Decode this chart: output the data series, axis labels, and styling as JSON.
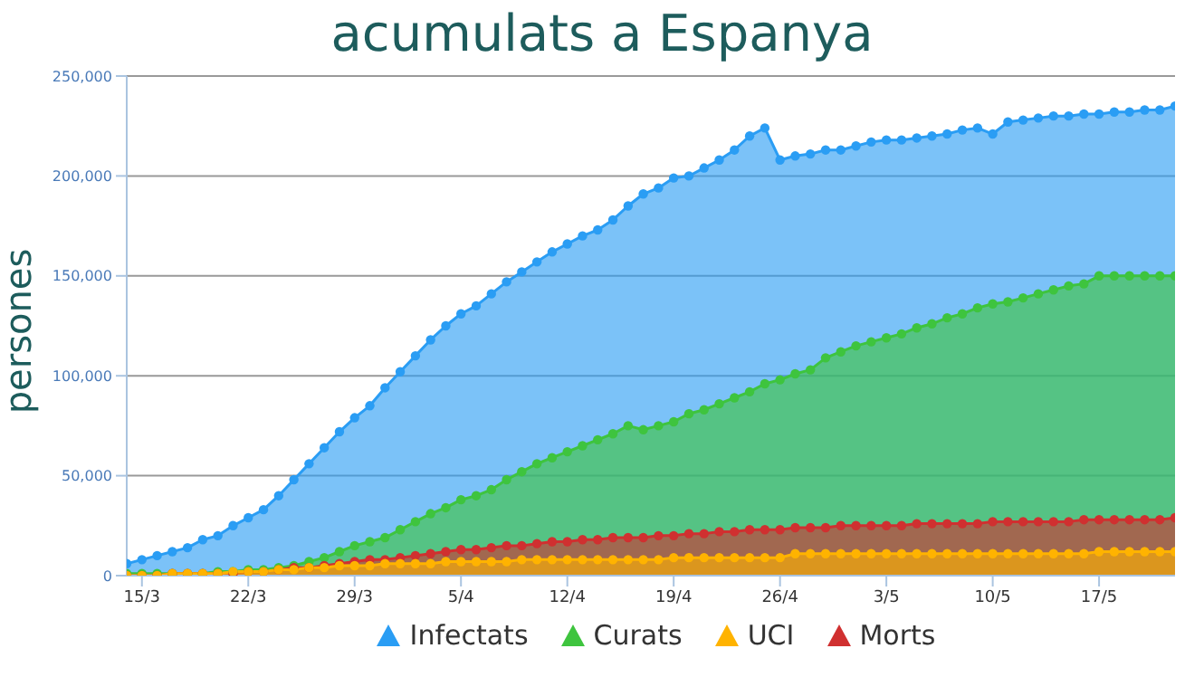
{
  "chart_data": {
    "type": "area",
    "title": "acumulats a Espanya",
    "ylabel": "persones",
    "x": [
      "--03-14",
      "--03-15",
      "--03-16",
      "--03-17",
      "--03-18",
      "--03-19",
      "--03-20",
      "--03-21",
      "--03-22",
      "--03-23",
      "--03-24",
      "--03-25",
      "--03-26",
      "--03-27",
      "--03-28",
      "--03-29",
      "--03-30",
      "--03-31",
      "--04-01",
      "--04-02",
      "--04-03",
      "--04-04",
      "--04-05",
      "--04-06",
      "--04-07",
      "--04-08",
      "--04-09",
      "--04-10",
      "--04-11",
      "--04-12",
      "--04-13",
      "--04-14",
      "--04-15",
      "--04-16",
      "--04-17",
      "--04-18",
      "--04-19",
      "--04-20",
      "--04-21",
      "--04-22",
      "--04-23",
      "--04-24",
      "--04-25",
      "--04-26",
      "--04-27",
      "--04-28",
      "--04-29",
      "--04-30",
      "--05-01",
      "--05-02",
      "--05-03",
      "--05-04",
      "--05-05",
      "--05-06",
      "--05-07",
      "--05-08",
      "--05-09",
      "--05-10",
      "--05-11",
      "--05-12",
      "--05-13",
      "--05-14",
      "--05-15",
      "--05-16",
      "--05-17",
      "--05-18",
      "--05-19",
      "--05-20",
      "--05-21",
      "--05-22"
    ],
    "series": [
      {
        "name": "Infectats",
        "color": "#2a9df4",
        "values": [
          6000,
          8000,
          10000,
          12000,
          14000,
          18000,
          20000,
          25000,
          29000,
          33000,
          40000,
          48000,
          56000,
          64000,
          72000,
          79000,
          85000,
          94000,
          102000,
          110000,
          118000,
          125000,
          131000,
          135000,
          141000,
          147000,
          152000,
          157000,
          162000,
          166000,
          170000,
          173000,
          178000,
          185000,
          191000,
          194000,
          199000,
          200000,
          204000,
          208000,
          213000,
          220000,
          224000,
          208000,
          210000,
          211000,
          213000,
          213000,
          215000,
          217000,
          218000,
          218000,
          219000,
          220000,
          221000,
          223000,
          224000,
          221000,
          227000,
          228000,
          229000,
          230000,
          230000,
          231000,
          231000,
          232000,
          232000,
          233000,
          233000,
          235000
        ]
      },
      {
        "name": "Curats",
        "color": "#3ec43e",
        "values": [
          1000,
          1000,
          1000,
          1000,
          1000,
          1000,
          2000,
          2000,
          3000,
          3000,
          4000,
          5000,
          7000,
          9000,
          12000,
          15000,
          17000,
          19000,
          23000,
          27000,
          31000,
          34000,
          38000,
          40000,
          43000,
          48000,
          52000,
          56000,
          59000,
          62000,
          65000,
          68000,
          71000,
          75000,
          73000,
          75000,
          77000,
          81000,
          83000,
          86000,
          89000,
          92000,
          96000,
          98000,
          101000,
          103000,
          109000,
          112000,
          115000,
          117000,
          119000,
          121000,
          124000,
          126000,
          129000,
          131000,
          134000,
          136000,
          137000,
          139000,
          141000,
          143000,
          145000,
          146000,
          150000,
          150000,
          150000,
          150000,
          150000,
          150000
        ]
      },
      {
        "name": "UCI",
        "color": "#ffb300",
        "values": [
          0,
          0,
          0,
          1000,
          1000,
          1000,
          1000,
          2000,
          2000,
          2000,
          3000,
          3000,
          4000,
          4000,
          5000,
          5000,
          5000,
          6000,
          6000,
          6000,
          6000,
          7000,
          7000,
          7000,
          7000,
          7000,
          8000,
          8000,
          8000,
          8000,
          8000,
          8000,
          8000,
          8000,
          8000,
          8000,
          9000,
          9000,
          9000,
          9000,
          9000,
          9000,
          9000,
          9000,
          11000,
          11000,
          11000,
          11000,
          11000,
          11000,
          11000,
          11000,
          11000,
          11000,
          11000,
          11000,
          11000,
          11000,
          11000,
          11000,
          11000,
          11000,
          11000,
          11000,
          12000,
          12000,
          12000,
          12000,
          12000,
          12000
        ]
      },
      {
        "name": "Morts",
        "color": "#d03030",
        "values": [
          0,
          0,
          0,
          1000,
          1000,
          1000,
          1000,
          1000,
          2000,
          2000,
          3000,
          4000,
          4000,
          5000,
          6000,
          7000,
          8000,
          8000,
          9000,
          10000,
          11000,
          12000,
          13000,
          13000,
          14000,
          15000,
          15000,
          16000,
          17000,
          17000,
          18000,
          18000,
          19000,
          19000,
          19000,
          20000,
          20000,
          21000,
          21000,
          22000,
          22000,
          23000,
          23000,
          23000,
          24000,
          24000,
          24000,
          25000,
          25000,
          25000,
          25000,
          25000,
          26000,
          26000,
          26000,
          26000,
          26000,
          27000,
          27000,
          27000,
          27000,
          27000,
          27000,
          28000,
          28000,
          28000,
          28000,
          28000,
          28000,
          29000
        ]
      }
    ],
    "xlim": [
      "--03-14",
      "--05-22"
    ],
    "xticks": [
      {
        "value": "--03-15",
        "label": "15/3"
      },
      {
        "value": "--03-22",
        "label": "22/3"
      },
      {
        "value": "--03-29",
        "label": "29/3"
      },
      {
        "value": "--04-05",
        "label": "5/4"
      },
      {
        "value": "--04-12",
        "label": "12/4"
      },
      {
        "value": "--04-19",
        "label": "19/4"
      },
      {
        "value": "--04-26",
        "label": "26/4"
      },
      {
        "value": "--05-03",
        "label": "3/5"
      },
      {
        "value": "--05-10",
        "label": "10/5"
      },
      {
        "value": "--05-17",
        "label": "17/5"
      }
    ],
    "ylim": [
      0,
      250000
    ],
    "yticks": [
      {
        "value": 0,
        "label": "0"
      },
      {
        "value": 50000,
        "label": "50,000"
      },
      {
        "value": 100000,
        "label": "100,000"
      },
      {
        "value": 150000,
        "label": "150,000"
      },
      {
        "value": 200000,
        "label": "200,000"
      },
      {
        "value": 250000,
        "label": "250,000"
      }
    ],
    "grid": "y",
    "legend": "bottom",
    "marker": "circle",
    "line_style": "solid"
  }
}
